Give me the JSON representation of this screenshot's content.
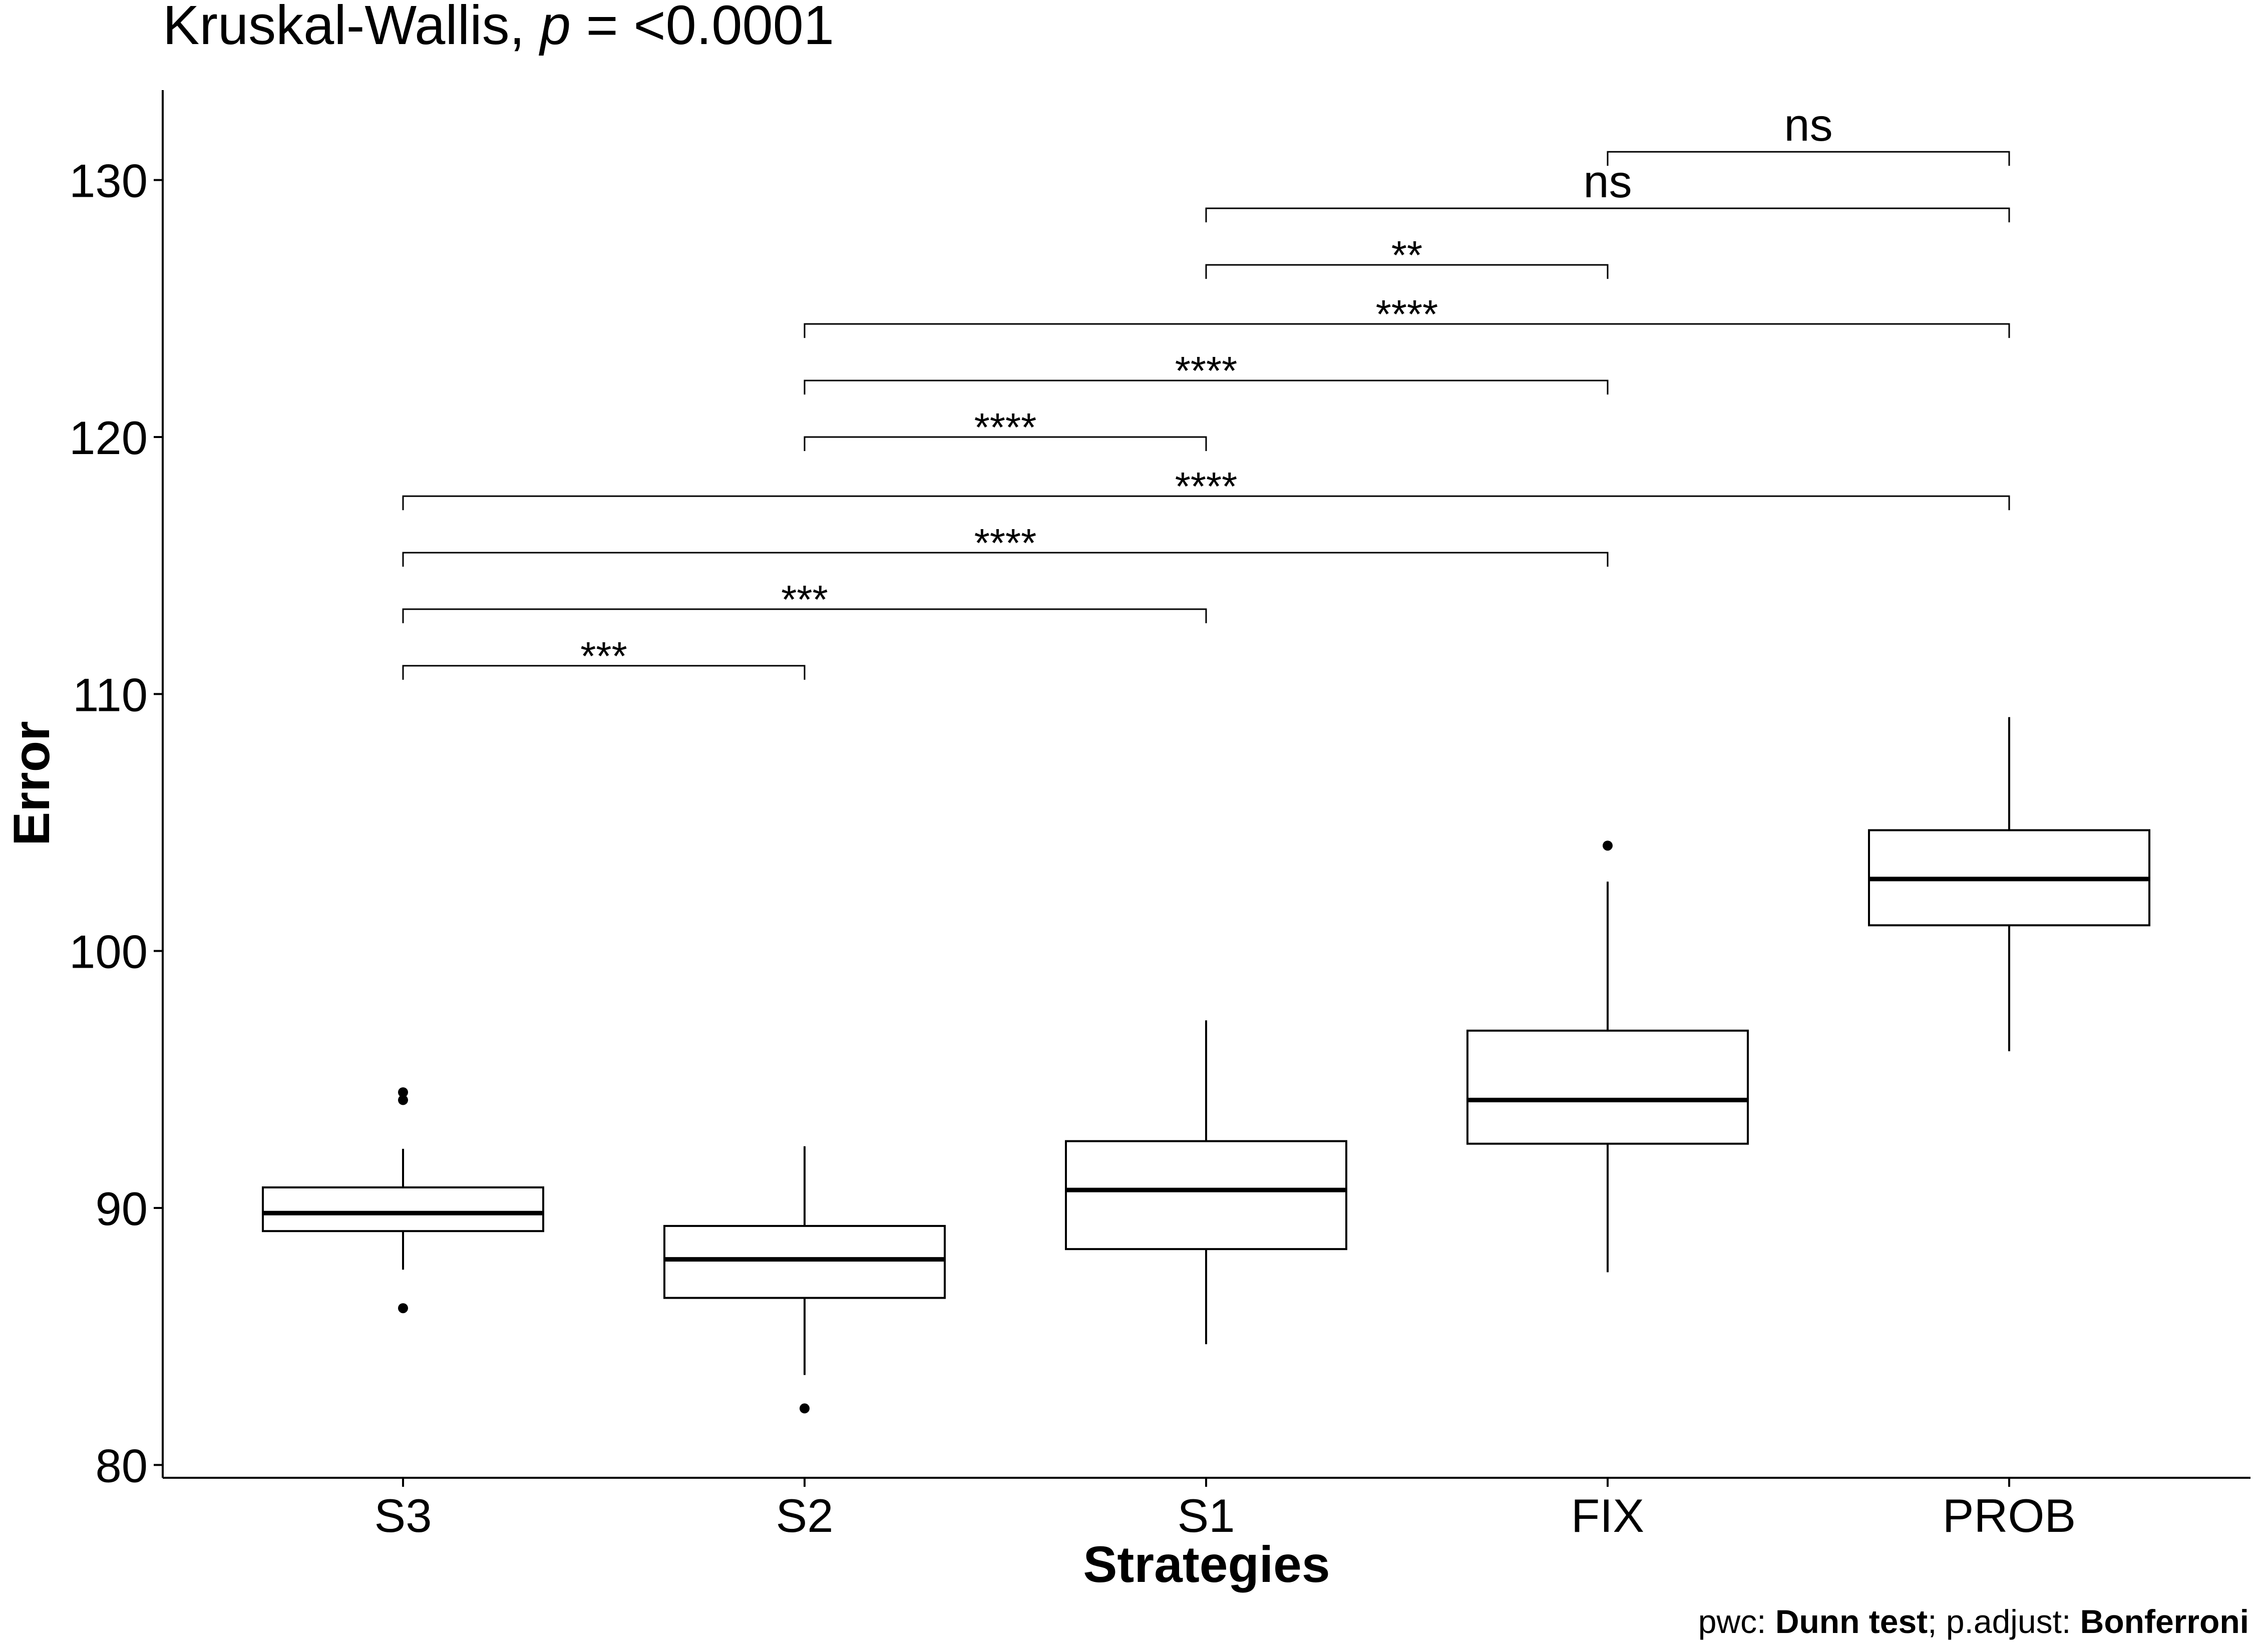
{
  "chart_data": {
    "type": "box",
    "title_prefix": "Kruskal-Wallis, ",
    "title_stat": "p",
    "title_suffix": " = <0.0001",
    "xlabel": "Strategies",
    "ylabel": "Error",
    "ylim": [
      79.5,
      133.5
    ],
    "yticks": [
      80,
      90,
      100,
      110,
      120,
      130
    ],
    "categories": [
      "S3",
      "S2",
      "S1",
      "FIX",
      "PROB"
    ],
    "boxes": [
      {
        "category": "S3",
        "q1": 89.1,
        "median": 89.8,
        "q3": 90.8,
        "whisker_low": 87.6,
        "whisker_high": 92.3,
        "outliers": [
          86.1,
          94.2,
          94.5
        ]
      },
      {
        "category": "S2",
        "q1": 86.5,
        "median": 88.0,
        "q3": 89.3,
        "whisker_low": 83.5,
        "whisker_high": 92.4,
        "outliers": [
          82.2
        ]
      },
      {
        "category": "S1",
        "q1": 88.4,
        "median": 90.7,
        "q3": 92.6,
        "whisker_low": 84.7,
        "whisker_high": 97.3,
        "outliers": []
      },
      {
        "category": "FIX",
        "q1": 92.5,
        "median": 94.2,
        "q3": 96.9,
        "whisker_low": 87.5,
        "whisker_high": 102.7,
        "outliers": [
          104.1
        ]
      },
      {
        "category": "PROB",
        "q1": 101.0,
        "median": 102.8,
        "q3": 104.7,
        "whisker_low": 96.1,
        "whisker_high": 109.1,
        "outliers": []
      }
    ],
    "comparisons": [
      {
        "from": "S3",
        "to": "S2",
        "label": "***",
        "y": 111.1
      },
      {
        "from": "S3",
        "to": "S1",
        "label": "***",
        "y": 113.3
      },
      {
        "from": "S3",
        "to": "FIX",
        "label": "****",
        "y": 115.5
      },
      {
        "from": "S3",
        "to": "PROB",
        "label": "****",
        "y": 117.7
      },
      {
        "from": "S2",
        "to": "S1",
        "label": "****",
        "y": 120.0
      },
      {
        "from": "S2",
        "to": "FIX",
        "label": "****",
        "y": 122.2
      },
      {
        "from": "S2",
        "to": "PROB",
        "label": "****",
        "y": 124.4
      },
      {
        "from": "S1",
        "to": "FIX",
        "label": "**",
        "y": 126.7
      },
      {
        "from": "S1",
        "to": "PROB",
        "label": "ns",
        "y": 128.9
      },
      {
        "from": "FIX",
        "to": "PROB",
        "label": "ns",
        "y": 131.1
      }
    ],
    "caption": {
      "prefix": "pwc: ",
      "test": "Dunn test",
      "middle": "; p.adjust: ",
      "method": "Bonferroni"
    }
  }
}
